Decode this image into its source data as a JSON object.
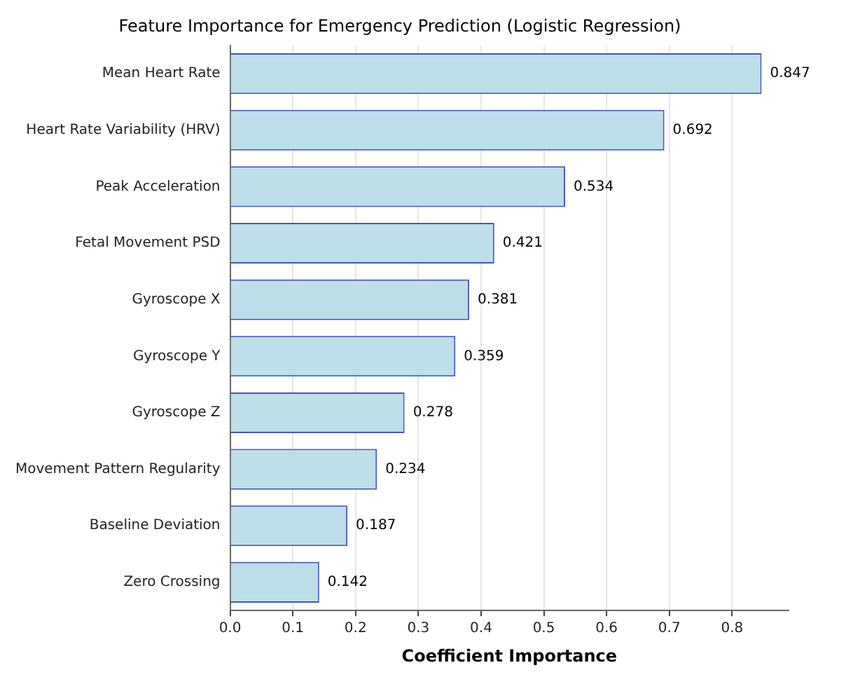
{
  "chart_data": {
    "type": "bar",
    "orientation": "horizontal",
    "title": "Feature Importance for Emergency Prediction (Logistic Regression)",
    "xlabel": "Coefficient Importance",
    "categories": [
      "Mean Heart Rate",
      "Heart Rate Variability (HRV)",
      "Peak Acceleration",
      "Fetal Movement PSD",
      "Gyroscope X",
      "Gyroscope Y",
      "Gyroscope Z",
      "Movement Pattern Regularity",
      "Baseline Deviation",
      "Zero Crossing"
    ],
    "values": [
      0.847,
      0.692,
      0.534,
      0.421,
      0.381,
      0.359,
      0.278,
      0.234,
      0.187,
      0.142
    ],
    "color": "#bcdfe9",
    "data_labels": true,
    "grid": "x",
    "legend": false,
    "xlim": [
      0,
      0.89
    ],
    "xticks": [
      {
        "value": 0,
        "label": "0.0"
      },
      0.1,
      0.2,
      0.3,
      0.4,
      0.5,
      0.6,
      0.7,
      0.8
    ]
  }
}
